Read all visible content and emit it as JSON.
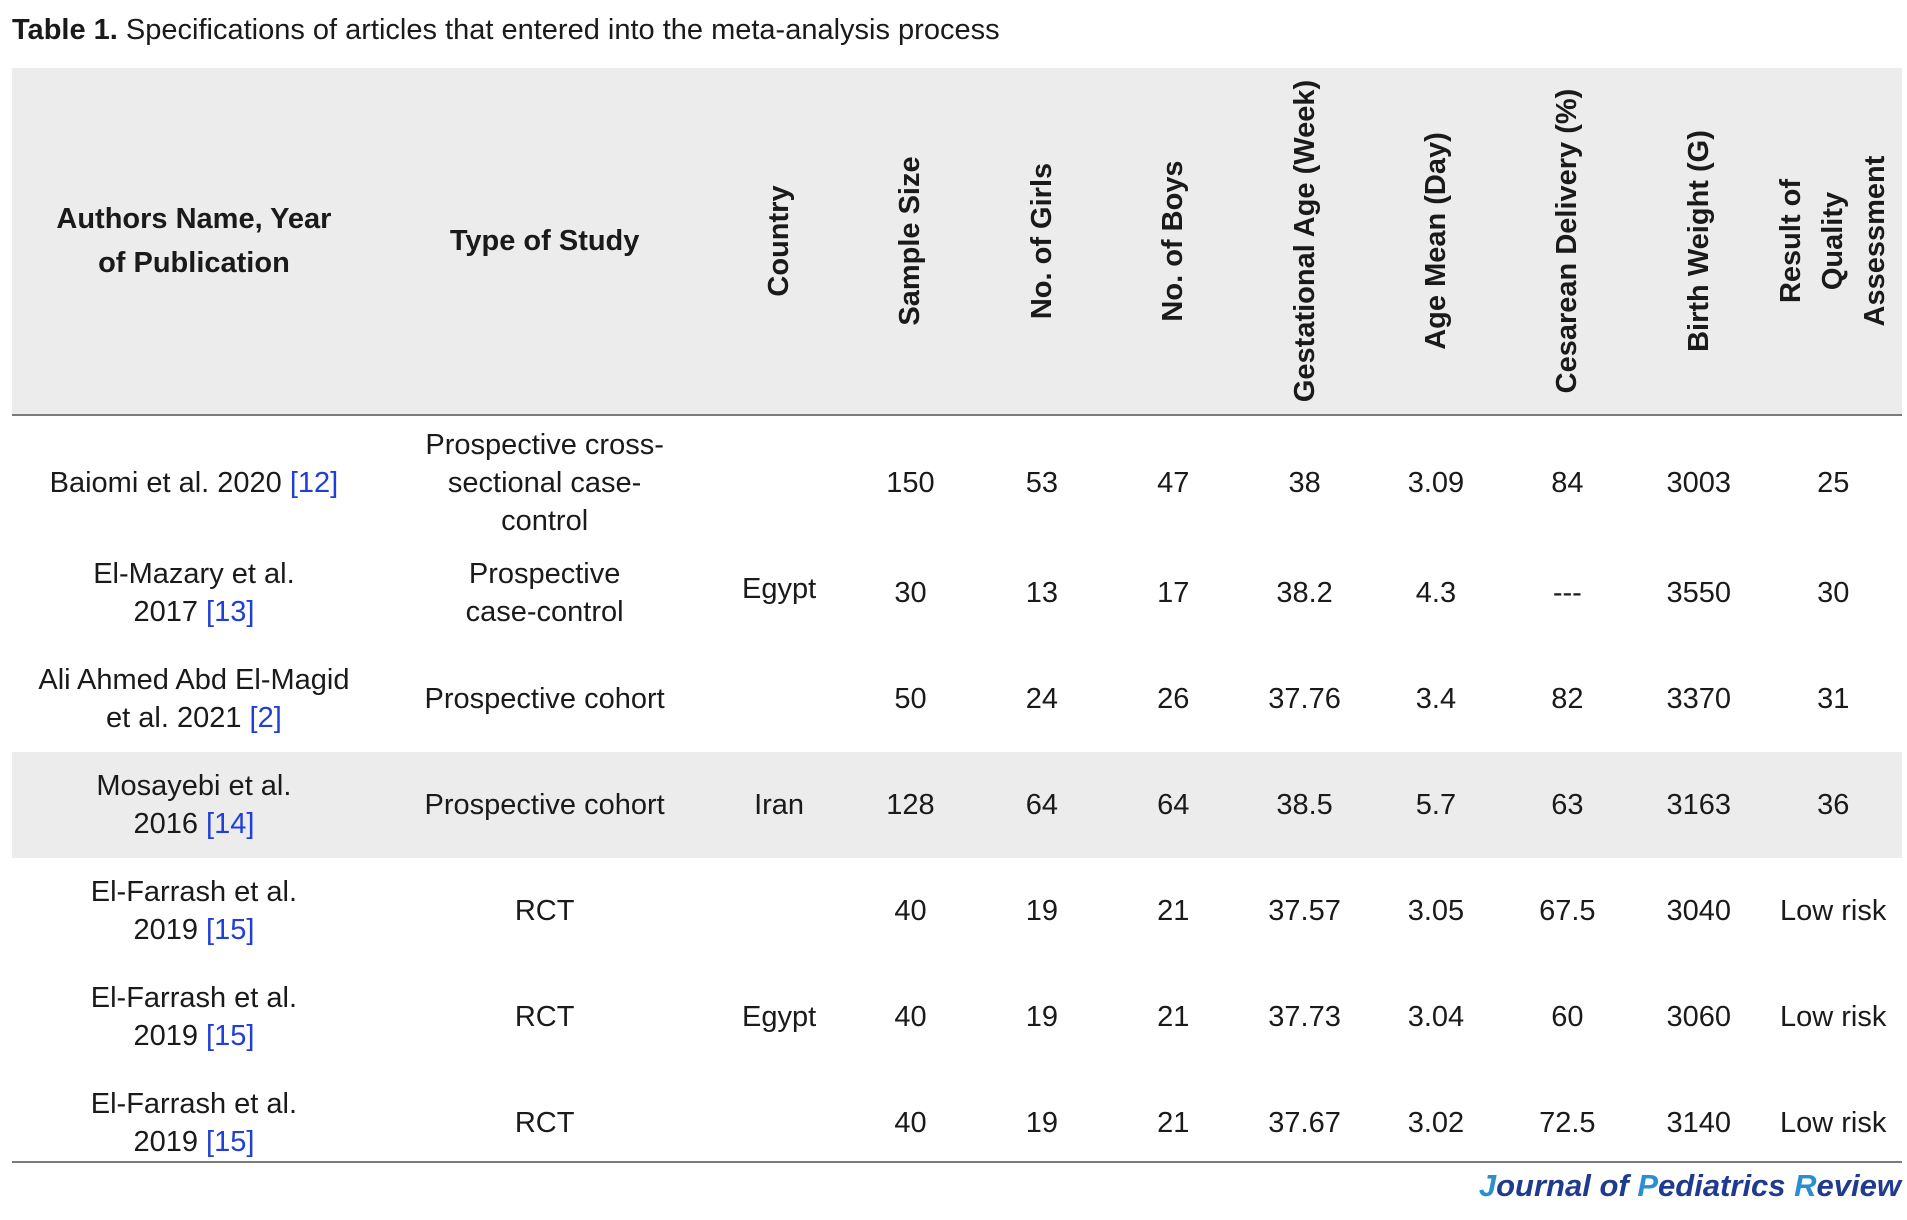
{
  "caption": {
    "label": "Table 1.",
    "text": "Specifications of articles that entered into the meta-analysis process"
  },
  "columns": [
    "Authors Name, Year of Publication",
    "Type of Study",
    "Country",
    "Sample Size",
    "No. of Girls",
    "No. of Boys",
    "Gestational Age (Week)",
    "Age Mean (Day)",
    "Cesarean Delivery (%)",
    "Birth Weight (G)",
    "Result of Quality Assessment"
  ],
  "rows": [
    {
      "author": "Baiomi et al. 2020",
      "ref": "[12]",
      "type": "Prospective cross-sectional case-control",
      "sample": "150",
      "girls": "53",
      "boys": "47",
      "ga": "38",
      "age": "3.09",
      "cesarean": "84",
      "weight": "3003",
      "quality": "25"
    },
    {
      "author": "El-Mazary et al. 2017",
      "ref": "[13]",
      "type": "Prospective case-control",
      "sample": "30",
      "girls": "13",
      "boys": "17",
      "ga": "38.2",
      "age": "4.3",
      "cesarean": "---",
      "weight": "3550",
      "quality": "30"
    },
    {
      "author": "Ali Ahmed Abd El-Magid et al. 2021",
      "ref": "[2]",
      "type": "Prospective cohort",
      "sample": "50",
      "girls": "24",
      "boys": "26",
      "ga": "37.76",
      "age": "3.4",
      "cesarean": "82",
      "weight": "3370",
      "quality": "31"
    },
    {
      "author": "Mosayebi et al. 2016",
      "ref": "[14]",
      "type": "Prospective cohort",
      "sample": "128",
      "girls": "64",
      "boys": "64",
      "ga": "38.5",
      "age": "5.7",
      "cesarean": "63",
      "weight": "3163",
      "quality": "36"
    },
    {
      "author": "El-Farrash et al. 2019",
      "ref": "[15]",
      "type": "RCT",
      "sample": "40",
      "girls": "19",
      "boys": "21",
      "ga": "37.57",
      "age": "3.05",
      "cesarean": "67.5",
      "weight": "3040",
      "quality": "Low risk"
    },
    {
      "author": "El-Farrash et al. 2019",
      "ref": "[15]",
      "type": "RCT",
      "sample": "40",
      "girls": "19",
      "boys": "21",
      "ga": "37.73",
      "age": "3.04",
      "cesarean": "60",
      "weight": "3060",
      "quality": "Low risk"
    },
    {
      "author": "El-Farrash et al. 2019",
      "ref": "[15]",
      "type": "RCT",
      "sample": "40",
      "girls": "19",
      "boys": "21",
      "ga": "37.67",
      "age": "3.02",
      "cesarean": "72.5",
      "weight": "3140",
      "quality": "Low risk"
    }
  ],
  "countries": [
    "Egypt",
    "Iran",
    "Egypt"
  ],
  "journal": {
    "c1": "J",
    "t1": "ournal of ",
    "c2": "P",
    "t2": "ediatrics ",
    "c3": "R",
    "t3": "eview"
  }
}
